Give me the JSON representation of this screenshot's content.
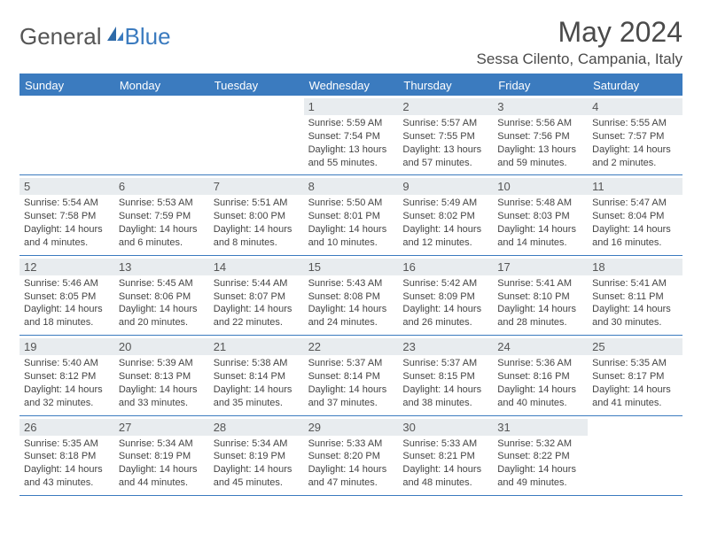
{
  "logo": {
    "part1": "General",
    "part2": "Blue"
  },
  "title": "May 2024",
  "location": "Sessa Cilento, Campania, Italy",
  "weekdays": [
    "Sunday",
    "Monday",
    "Tuesday",
    "Wednesday",
    "Thursday",
    "Friday",
    "Saturday"
  ],
  "colors": {
    "accent": "#3b7bbf",
    "header_bg": "#3b7bbf",
    "day_header_bg": "#e8ecef",
    "text": "#3a3a3a"
  },
  "type": "calendar-table",
  "font": {
    "family": "Arial",
    "title_size": 32,
    "location_size": 17,
    "weekday_size": 13,
    "detail_size": 11
  },
  "weeks": [
    [
      {
        "day": "",
        "sunrise": "",
        "sunset": "",
        "daylight": ""
      },
      {
        "day": "",
        "sunrise": "",
        "sunset": "",
        "daylight": ""
      },
      {
        "day": "",
        "sunrise": "",
        "sunset": "",
        "daylight": ""
      },
      {
        "day": "1",
        "sunrise": "Sunrise: 5:59 AM",
        "sunset": "Sunset: 7:54 PM",
        "daylight": "Daylight: 13 hours and 55 minutes."
      },
      {
        "day": "2",
        "sunrise": "Sunrise: 5:57 AM",
        "sunset": "Sunset: 7:55 PM",
        "daylight": "Daylight: 13 hours and 57 minutes."
      },
      {
        "day": "3",
        "sunrise": "Sunrise: 5:56 AM",
        "sunset": "Sunset: 7:56 PM",
        "daylight": "Daylight: 13 hours and 59 minutes."
      },
      {
        "day": "4",
        "sunrise": "Sunrise: 5:55 AM",
        "sunset": "Sunset: 7:57 PM",
        "daylight": "Daylight: 14 hours and 2 minutes."
      }
    ],
    [
      {
        "day": "5",
        "sunrise": "Sunrise: 5:54 AM",
        "sunset": "Sunset: 7:58 PM",
        "daylight": "Daylight: 14 hours and 4 minutes."
      },
      {
        "day": "6",
        "sunrise": "Sunrise: 5:53 AM",
        "sunset": "Sunset: 7:59 PM",
        "daylight": "Daylight: 14 hours and 6 minutes."
      },
      {
        "day": "7",
        "sunrise": "Sunrise: 5:51 AM",
        "sunset": "Sunset: 8:00 PM",
        "daylight": "Daylight: 14 hours and 8 minutes."
      },
      {
        "day": "8",
        "sunrise": "Sunrise: 5:50 AM",
        "sunset": "Sunset: 8:01 PM",
        "daylight": "Daylight: 14 hours and 10 minutes."
      },
      {
        "day": "9",
        "sunrise": "Sunrise: 5:49 AM",
        "sunset": "Sunset: 8:02 PM",
        "daylight": "Daylight: 14 hours and 12 minutes."
      },
      {
        "day": "10",
        "sunrise": "Sunrise: 5:48 AM",
        "sunset": "Sunset: 8:03 PM",
        "daylight": "Daylight: 14 hours and 14 minutes."
      },
      {
        "day": "11",
        "sunrise": "Sunrise: 5:47 AM",
        "sunset": "Sunset: 8:04 PM",
        "daylight": "Daylight: 14 hours and 16 minutes."
      }
    ],
    [
      {
        "day": "12",
        "sunrise": "Sunrise: 5:46 AM",
        "sunset": "Sunset: 8:05 PM",
        "daylight": "Daylight: 14 hours and 18 minutes."
      },
      {
        "day": "13",
        "sunrise": "Sunrise: 5:45 AM",
        "sunset": "Sunset: 8:06 PM",
        "daylight": "Daylight: 14 hours and 20 minutes."
      },
      {
        "day": "14",
        "sunrise": "Sunrise: 5:44 AM",
        "sunset": "Sunset: 8:07 PM",
        "daylight": "Daylight: 14 hours and 22 minutes."
      },
      {
        "day": "15",
        "sunrise": "Sunrise: 5:43 AM",
        "sunset": "Sunset: 8:08 PM",
        "daylight": "Daylight: 14 hours and 24 minutes."
      },
      {
        "day": "16",
        "sunrise": "Sunrise: 5:42 AM",
        "sunset": "Sunset: 8:09 PM",
        "daylight": "Daylight: 14 hours and 26 minutes."
      },
      {
        "day": "17",
        "sunrise": "Sunrise: 5:41 AM",
        "sunset": "Sunset: 8:10 PM",
        "daylight": "Daylight: 14 hours and 28 minutes."
      },
      {
        "day": "18",
        "sunrise": "Sunrise: 5:41 AM",
        "sunset": "Sunset: 8:11 PM",
        "daylight": "Daylight: 14 hours and 30 minutes."
      }
    ],
    [
      {
        "day": "19",
        "sunrise": "Sunrise: 5:40 AM",
        "sunset": "Sunset: 8:12 PM",
        "daylight": "Daylight: 14 hours and 32 minutes."
      },
      {
        "day": "20",
        "sunrise": "Sunrise: 5:39 AM",
        "sunset": "Sunset: 8:13 PM",
        "daylight": "Daylight: 14 hours and 33 minutes."
      },
      {
        "day": "21",
        "sunrise": "Sunrise: 5:38 AM",
        "sunset": "Sunset: 8:14 PM",
        "daylight": "Daylight: 14 hours and 35 minutes."
      },
      {
        "day": "22",
        "sunrise": "Sunrise: 5:37 AM",
        "sunset": "Sunset: 8:14 PM",
        "daylight": "Daylight: 14 hours and 37 minutes."
      },
      {
        "day": "23",
        "sunrise": "Sunrise: 5:37 AM",
        "sunset": "Sunset: 8:15 PM",
        "daylight": "Daylight: 14 hours and 38 minutes."
      },
      {
        "day": "24",
        "sunrise": "Sunrise: 5:36 AM",
        "sunset": "Sunset: 8:16 PM",
        "daylight": "Daylight: 14 hours and 40 minutes."
      },
      {
        "day": "25",
        "sunrise": "Sunrise: 5:35 AM",
        "sunset": "Sunset: 8:17 PM",
        "daylight": "Daylight: 14 hours and 41 minutes."
      }
    ],
    [
      {
        "day": "26",
        "sunrise": "Sunrise: 5:35 AM",
        "sunset": "Sunset: 8:18 PM",
        "daylight": "Daylight: 14 hours and 43 minutes."
      },
      {
        "day": "27",
        "sunrise": "Sunrise: 5:34 AM",
        "sunset": "Sunset: 8:19 PM",
        "daylight": "Daylight: 14 hours and 44 minutes."
      },
      {
        "day": "28",
        "sunrise": "Sunrise: 5:34 AM",
        "sunset": "Sunset: 8:19 PM",
        "daylight": "Daylight: 14 hours and 45 minutes."
      },
      {
        "day": "29",
        "sunrise": "Sunrise: 5:33 AM",
        "sunset": "Sunset: 8:20 PM",
        "daylight": "Daylight: 14 hours and 47 minutes."
      },
      {
        "day": "30",
        "sunrise": "Sunrise: 5:33 AM",
        "sunset": "Sunset: 8:21 PM",
        "daylight": "Daylight: 14 hours and 48 minutes."
      },
      {
        "day": "31",
        "sunrise": "Sunrise: 5:32 AM",
        "sunset": "Sunset: 8:22 PM",
        "daylight": "Daylight: 14 hours and 49 minutes."
      },
      {
        "day": "",
        "sunrise": "",
        "sunset": "",
        "daylight": ""
      }
    ]
  ]
}
